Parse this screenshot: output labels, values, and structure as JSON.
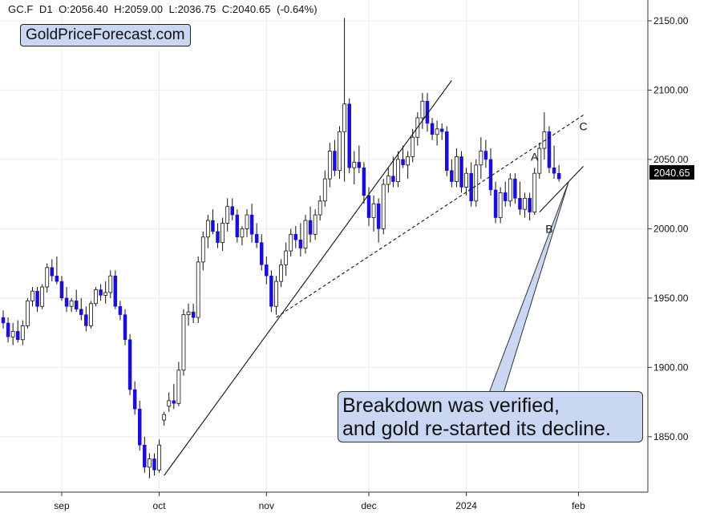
{
  "header": {
    "symbol": "GC.F",
    "timeframe": "D1",
    "open": "O:2056.40",
    "high": "H:2059.00",
    "low": "L:2036.75",
    "close": "C:2040.65",
    "change": "(-0.64%)"
  },
  "brand": "GoldPriceForecast.com",
  "callout": {
    "line1": "Breakdown was verified,",
    "line2": "and gold re-started its decline."
  },
  "colors": {
    "up": "#ffffff",
    "down": "#1a0fd6",
    "wick": "#111111",
    "grid": "#ebebeb",
    "price_box": "#000000",
    "callout_bg": "#c9d7f2"
  },
  "chart_data": {
    "type": "candlestick",
    "instrument": "GC.F",
    "timeframe": "D1",
    "ylim": [
      1810,
      2165
    ],
    "y_ticks": [
      1850,
      1900,
      1950,
      2000,
      2050,
      2100,
      2150
    ],
    "y_tick_labels": [
      "1850.00",
      "1900.00",
      "1950.00",
      "2000.00",
      "2050.00",
      "2100.00",
      "2150.00"
    ],
    "x_ticks": [
      {
        "label": "sep",
        "idx": 12
      },
      {
        "label": "oct",
        "idx": 32
      },
      {
        "label": "nov",
        "idx": 54
      },
      {
        "label": "dec",
        "idx": 75
      },
      {
        "label": "2024",
        "idx": 95
      },
      {
        "label": "feb",
        "idx": 118
      }
    ],
    "last_price": 2040.65,
    "last_price_label": "2040.65",
    "candles": [
      [
        1936,
        1941,
        1928,
        1932
      ],
      [
        1932,
        1936,
        1918,
        1922
      ],
      [
        1922,
        1932,
        1916,
        1926
      ],
      [
        1926,
        1934,
        1918,
        1920
      ],
      [
        1920,
        1934,
        1916,
        1930
      ],
      [
        1930,
        1950,
        1928,
        1948
      ],
      [
        1948,
        1958,
        1944,
        1955
      ],
      [
        1955,
        1958,
        1940,
        1944
      ],
      [
        1944,
        1960,
        1942,
        1958
      ],
      [
        1958,
        1975,
        1954,
        1972
      ],
      [
        1972,
        1978,
        1962,
        1966
      ],
      [
        1966,
        1980,
        1960,
        1962
      ],
      [
        1962,
        1966,
        1948,
        1950
      ],
      [
        1950,
        1958,
        1940,
        1944
      ],
      [
        1944,
        1950,
        1940,
        1948
      ],
      [
        1948,
        1956,
        1940,
        1942
      ],
      [
        1942,
        1950,
        1934,
        1938
      ],
      [
        1938,
        1944,
        1926,
        1930
      ],
      [
        1930,
        1948,
        1928,
        1946
      ],
      [
        1946,
        1958,
        1944,
        1956
      ],
      [
        1956,
        1960,
        1948,
        1952
      ],
      [
        1952,
        1962,
        1946,
        1954
      ],
      [
        1954,
        1970,
        1950,
        1966
      ],
      [
        1966,
        1970,
        1942,
        1944
      ],
      [
        1944,
        1948,
        1934,
        1938
      ],
      [
        1938,
        1942,
        1916,
        1920
      ],
      [
        1920,
        1924,
        1880,
        1884
      ],
      [
        1884,
        1890,
        1866,
        1870
      ],
      [
        1870,
        1876,
        1840,
        1844
      ],
      [
        1844,
        1850,
        1824,
        1828
      ],
      [
        1828,
        1838,
        1820,
        1834
      ],
      [
        1834,
        1838,
        1822,
        1826
      ],
      [
        1826,
        1848,
        1824,
        1844
      ],
      [
        1862,
        1868,
        1858,
        1866
      ],
      [
        1872,
        1882,
        1868,
        1876
      ],
      [
        1876,
        1888,
        1870,
        1874
      ],
      [
        1874,
        1904,
        1872,
        1898
      ],
      [
        1898,
        1942,
        1894,
        1938
      ],
      [
        1938,
        1946,
        1930,
        1940
      ],
      [
        1940,
        1946,
        1932,
        1936
      ],
      [
        1936,
        1980,
        1932,
        1976
      ],
      [
        1976,
        1998,
        1970,
        1994
      ],
      [
        1994,
        2010,
        1986,
        2006
      ],
      [
        2006,
        2014,
        1996,
        1998
      ],
      [
        1998,
        2004,
        1986,
        1990
      ],
      [
        1990,
        2008,
        1984,
        2004
      ],
      [
        2004,
        2022,
        1998,
        2016
      ],
      [
        2016,
        2022,
        2006,
        2010
      ],
      [
        2010,
        2014,
        1990,
        1994
      ],
      [
        1994,
        2002,
        1988,
        2000
      ],
      [
        2000,
        2014,
        1994,
        2010
      ],
      [
        2010,
        2018,
        1990,
        1996
      ],
      [
        1996,
        2004,
        1986,
        1990
      ],
      [
        1990,
        1996,
        1970,
        1974
      ],
      [
        1974,
        1980,
        1960,
        1966
      ],
      [
        1966,
        1970,
        1940,
        1944
      ],
      [
        1944,
        1966,
        1938,
        1962
      ],
      [
        1962,
        1978,
        1958,
        1974
      ],
      [
        1974,
        1990,
        1966,
        1984
      ],
      [
        1984,
        2000,
        1980,
        1996
      ],
      [
        1996,
        2002,
        1986,
        1992
      ],
      [
        1992,
        2004,
        1980,
        1986
      ],
      [
        1986,
        2010,
        1982,
        2006
      ],
      [
        2006,
        2016,
        1990,
        1996
      ],
      [
        1996,
        2014,
        1992,
        2010
      ],
      [
        2010,
        2024,
        2006,
        2020
      ],
      [
        2020,
        2042,
        2016,
        2036
      ],
      [
        2036,
        2062,
        2030,
        2056
      ],
      [
        2056,
        2064,
        2038,
        2042
      ],
      [
        2042,
        2074,
        2036,
        2070
      ],
      [
        2070,
        2152,
        2034,
        2090
      ],
      [
        2090,
        2094,
        2040,
        2044
      ],
      [
        2044,
        2056,
        2032,
        2048
      ],
      [
        2048,
        2060,
        2040,
        2044
      ],
      [
        2044,
        2048,
        2018,
        2024
      ],
      [
        2024,
        2030,
        2002,
        2008
      ],
      [
        2008,
        2024,
        1998,
        2018
      ],
      [
        2018,
        2022,
        1990,
        2000
      ],
      [
        2000,
        2036,
        1996,
        2032
      ],
      [
        2032,
        2044,
        2026,
        2038
      ],
      [
        2038,
        2052,
        2030,
        2034
      ],
      [
        2034,
        2056,
        2030,
        2050
      ],
      [
        2050,
        2060,
        2044,
        2046
      ],
      [
        2046,
        2056,
        2036,
        2052
      ],
      [
        2052,
        2072,
        2048,
        2066
      ],
      [
        2066,
        2084,
        2060,
        2080
      ],
      [
        2080,
        2098,
        2072,
        2092
      ],
      [
        2092,
        2098,
        2070,
        2076
      ],
      [
        2076,
        2080,
        2064,
        2068
      ],
      [
        2068,
        2078,
        2060,
        2072
      ],
      [
        2072,
        2076,
        2064,
        2070
      ],
      [
        2070,
        2074,
        2038,
        2042
      ],
      [
        2042,
        2050,
        2030,
        2034
      ],
      [
        2034,
        2058,
        2030,
        2052
      ],
      [
        2052,
        2056,
        2026,
        2030
      ],
      [
        2030,
        2044,
        2024,
        2040
      ],
      [
        2040,
        2048,
        2016,
        2020
      ],
      [
        2020,
        2050,
        2016,
        2046
      ],
      [
        2046,
        2066,
        2036,
        2056
      ],
      [
        2056,
        2064,
        2044,
        2050
      ],
      [
        2050,
        2058,
        2024,
        2028
      ],
      [
        2028,
        2034,
        2004,
        2008
      ],
      [
        2008,
        2030,
        2004,
        2026
      ],
      [
        2026,
        2034,
        2016,
        2020
      ],
      [
        2020,
        2040,
        2016,
        2036
      ],
      [
        2036,
        2040,
        2018,
        2022
      ],
      [
        2022,
        2034,
        2010,
        2014
      ],
      [
        2014,
        2026,
        2008,
        2022
      ],
      [
        2022,
        2026,
        2006,
        2012
      ],
      [
        2012,
        2044,
        2010,
        2040
      ],
      [
        2040,
        2062,
        2036,
        2058
      ],
      [
        2058,
        2084,
        2050,
        2070
      ],
      [
        2070,
        2074,
        2040,
        2044
      ],
      [
        2044,
        2060,
        2036,
        2040
      ],
      [
        2040,
        2046,
        2034,
        2036
      ]
    ],
    "annotations": [
      {
        "label": "A",
        "at_idx": 109,
        "price": 2049
      },
      {
        "label": "B",
        "at_idx": 112,
        "price": 1997
      },
      {
        "label": "C",
        "at_idx": 119,
        "price": 2071
      }
    ],
    "trendlines": [
      {
        "style": "solid",
        "from": {
          "idx": 33,
          "price": 1822
        },
        "to": {
          "idx": 92,
          "price": 2107
        }
      },
      {
        "style": "dashed",
        "from": {
          "idx": 56,
          "price": 1936
        },
        "to": {
          "idx": 119,
          "price": 2082
        }
      },
      {
        "style": "solid",
        "from": {
          "idx": 110,
          "price": 2012
        },
        "to": {
          "idx": 119,
          "price": 2045
        }
      }
    ]
  }
}
